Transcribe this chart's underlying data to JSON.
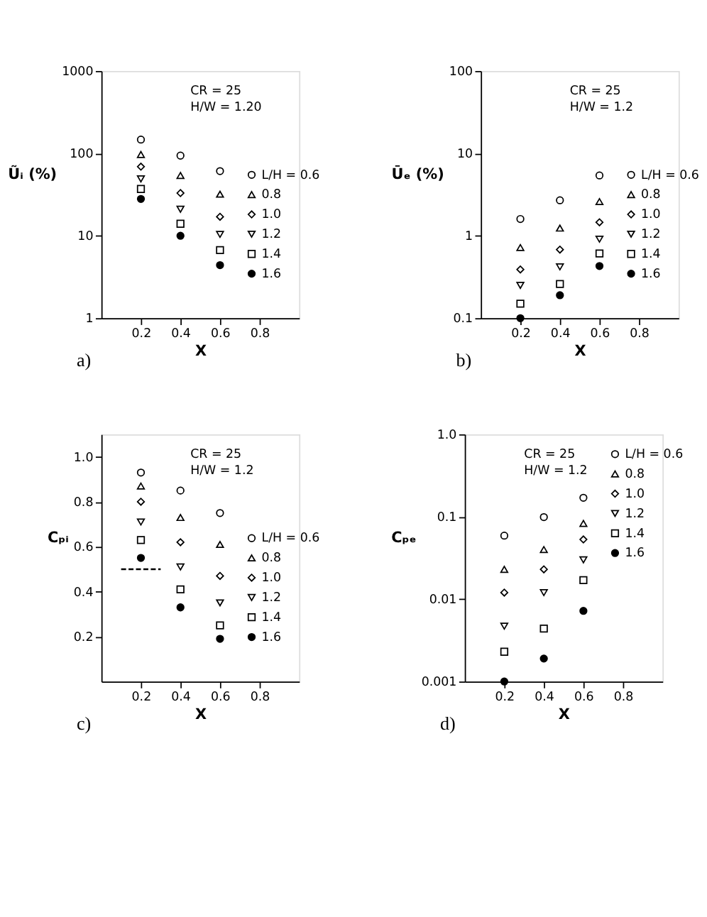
{
  "chart_data": [
    {
      "type": "scatter",
      "xlabel": "X",
      "ylabel": "Ũᵢ (%)",
      "annotations": [
        "CR = 25",
        "H/W = 1.20",
        "a)"
      ],
      "log": "y",
      "xlim": [
        0,
        1
      ],
      "xticks": [
        0.2,
        0.4,
        0.6,
        0.8
      ],
      "ylim": [
        1,
        1000
      ],
      "yticks": [
        1,
        10,
        100,
        1000
      ],
      "grid": false,
      "legend": "right",
      "x": [
        0.2,
        0.4,
        0.6
      ],
      "series": [
        {
          "name": "L/H = 0.6",
          "color": "#000000",
          "marker": "circle",
          "values": [
            147,
            94,
            61
          ]
        },
        {
          "name": "0.8",
          "color": "#000000",
          "marker": "triangle",
          "values": [
            97,
            54,
            32
          ]
        },
        {
          "name": "1.0",
          "color": "#000000",
          "marker": "diamond",
          "values": [
            69,
            33,
            17
          ]
        },
        {
          "name": "1.2",
          "color": "#000000",
          "marker": "triangle-down",
          "values": [
            49,
            21,
            10.4
          ]
        },
        {
          "name": "1.4",
          "color": "#000000",
          "marker": "square",
          "values": [
            37,
            14,
            6.7
          ]
        },
        {
          "name": "1.6",
          "color": "#000000",
          "marker": "filled circle",
          "values": [
            28,
            10,
            4.4
          ]
        }
      ]
    },
    {
      "type": "scatter",
      "xlabel": "X",
      "ylabel": "Ūₑ (%)",
      "annotations": [
        "CR = 25",
        "H/W = 1.2",
        "b)"
      ],
      "log": "y",
      "xlim": [
        0,
        1
      ],
      "xticks": [
        0.2,
        0.4,
        0.6,
        0.8
      ],
      "ylim": [
        0.1,
        100
      ],
      "yticks": [
        0.1,
        1,
        10,
        100
      ],
      "grid": false,
      "legend": "right",
      "x": [
        0.2,
        0.4,
        0.6
      ],
      "series": [
        {
          "name": "L/H = 0.6",
          "color": "#000000",
          "marker": "circle",
          "values": [
            1.6,
            2.7,
            5.4
          ]
        },
        {
          "name": "0.8",
          "color": "#000000",
          "marker": "triangle",
          "values": [
            0.72,
            1.24,
            2.6
          ]
        },
        {
          "name": "1.0",
          "color": "#000000",
          "marker": "diamond",
          "values": [
            0.39,
            0.68,
            1.46
          ]
        },
        {
          "name": "1.2",
          "color": "#000000",
          "marker": "triangle-down",
          "values": [
            0.25,
            0.42,
            0.91
          ]
        },
        {
          "name": "1.4",
          "color": "#000000",
          "marker": "square",
          "values": [
            0.15,
            0.26,
            0.61
          ]
        },
        {
          "name": "1.6",
          "color": "#000000",
          "marker": "filled circle",
          "values": [
            0.1,
            0.19,
            0.43
          ]
        }
      ]
    },
    {
      "type": "scatter",
      "xlabel": "X",
      "ylabel": "Cₚᵢ",
      "annotations": [
        "CR = 25",
        "H/W = 1.2",
        "c)"
      ],
      "xlim": [
        0,
        1
      ],
      "xticks": [
        0.2,
        0.4,
        0.6,
        0.8
      ],
      "ylim": [
        0,
        1.1
      ],
      "yticks": [
        0.2,
        0.4,
        0.6,
        0.8,
        {
          "value": 1,
          "label": "1.0"
        }
      ],
      "grid": false,
      "legend": "right",
      "x": [
        0.2,
        0.4,
        0.6
      ],
      "series": [
        {
          "name": "L/H = 0.6",
          "color": "#000000",
          "marker": "circle",
          "values": [
            0.93,
            0.85,
            0.75
          ]
        },
        {
          "name": "0.8",
          "color": "#000000",
          "marker": "triangle",
          "values": [
            0.87,
            0.73,
            0.61
          ]
        },
        {
          "name": "1.0",
          "color": "#000000",
          "marker": "diamond",
          "values": [
            0.8,
            0.62,
            0.47
          ]
        },
        {
          "name": "1.2",
          "color": "#000000",
          "marker": "triangle-down",
          "values": [
            0.71,
            0.51,
            0.35
          ]
        },
        {
          "name": "1.4",
          "color": "#000000",
          "marker": "square",
          "values": [
            0.63,
            0.41,
            0.25
          ]
        },
        {
          "name": "1.6",
          "color": "#000000",
          "marker": "filled circle",
          "values": [
            0.55,
            0.33,
            0.19
          ]
        },
        {
          "type": "line",
          "color": "#000000",
          "line_style": "dashed",
          "x": [
            0.1,
            0.3
          ],
          "values": [
            0.5,
            0.5
          ]
        }
      ]
    },
    {
      "type": "scatter",
      "xlabel": "X",
      "ylabel": "Cₚₑ",
      "annotations": [
        "CR = 25",
        "H/W = 1.2",
        "d)"
      ],
      "log": "y",
      "xlim": [
        0,
        1
      ],
      "xticks": [
        0.2,
        0.4,
        0.6,
        0.8
      ],
      "ylim": [
        0.001,
        1
      ],
      "yticks": [
        0.001,
        0.01,
        0.1,
        {
          "value": 1,
          "label": "1.0"
        }
      ],
      "grid": false,
      "legend": "top right",
      "x": [
        0.2,
        0.4,
        0.6
      ],
      "series": [
        {
          "name": "L/H = 0.6",
          "color": "#000000",
          "marker": "circle",
          "values": [
            0.059,
            0.099,
            0.17
          ]
        },
        {
          "name": "0.8",
          "color": "#000000",
          "marker": "triangle",
          "values": [
            0.023,
            0.04,
            0.083
          ]
        },
        {
          "name": "1.0",
          "color": "#000000",
          "marker": "diamond",
          "values": [
            0.012,
            0.023,
            0.053
          ]
        },
        {
          "name": "1.2",
          "color": "#000000",
          "marker": "triangle-down",
          "values": [
            0.0047,
            0.012,
            0.03
          ]
        },
        {
          "name": "1.4",
          "color": "#000000",
          "marker": "square",
          "values": [
            0.0023,
            0.0044,
            0.017
          ]
        },
        {
          "name": "1.6",
          "color": "#000000",
          "marker": "filled circle",
          "values": [
            0.001,
            0.0019,
            0.0072
          ]
        }
      ]
    }
  ]
}
